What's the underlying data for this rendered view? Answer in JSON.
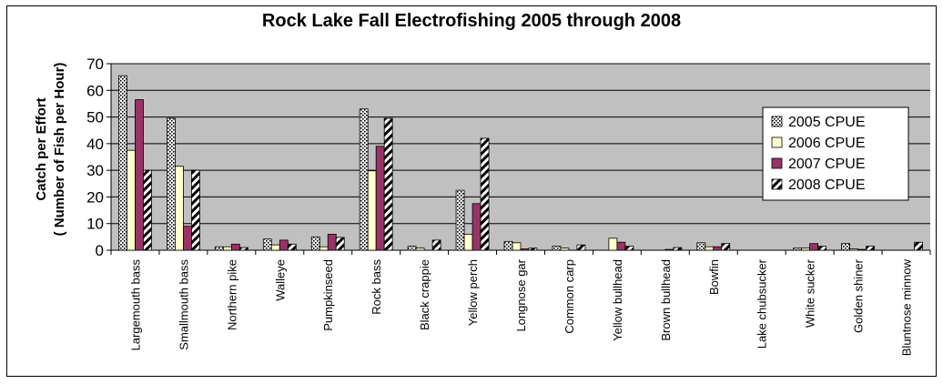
{
  "chart_data": {
    "type": "bar",
    "title": "Rock Lake Fall Electrofishing 2005 through 2008",
    "ylabel_line1": "Catch per Effort",
    "ylabel_line2": "( Number of Fish per Hour)",
    "xlabel": "",
    "ylim": [
      0,
      70
    ],
    "yticks": [
      0,
      10,
      20,
      30,
      40,
      50,
      60,
      70
    ],
    "grid": true,
    "legend_position": "right",
    "plot_background": "#c0c0c0",
    "categories": [
      "Largemouth bass",
      "Smallmouth bass",
      "Northern pike",
      "Walleye",
      "Pumpkinseed",
      "Rock bass",
      "Black crappie",
      "Yellow perch",
      "Longnose gar",
      "Common carp",
      "Yellow bullhead",
      "Brown bullhead",
      "Bowfin",
      "Lake chubsucker",
      "White sucker",
      "Golden shiner",
      "Bluntnose minnow"
    ],
    "series": [
      {
        "name": "2005 CPUE",
        "color": "#ffffff",
        "pattern": "dots",
        "values": [
          65.5,
          49.5,
          1.3,
          4.2,
          5.0,
          53.0,
          1.5,
          22.5,
          3.3,
          1.5,
          0,
          0,
          2.8,
          0,
          0.8,
          2.5,
          0
        ]
      },
      {
        "name": "2006 CPUE",
        "color": "#ffffcc",
        "pattern": "solid",
        "values": [
          37.5,
          31.5,
          1.3,
          2.0,
          1.3,
          29.8,
          0.8,
          6.0,
          2.8,
          0.8,
          4.5,
          0,
          1.3,
          0,
          0.8,
          0.5,
          0
        ]
      },
      {
        "name": "2007 CPUE",
        "color": "#993366",
        "pattern": "solid",
        "values": [
          56.5,
          9.0,
          2.3,
          3.8,
          6.0,
          39.0,
          0,
          17.5,
          0.5,
          0,
          3.0,
          0.3,
          1.3,
          0,
          2.5,
          0.3,
          0
        ]
      },
      {
        "name": "2008 CPUE",
        "color": "#ffffff",
        "pattern": "diagonal",
        "values": [
          30.0,
          30.0,
          1.0,
          2.3,
          4.8,
          49.5,
          3.8,
          42.0,
          0.8,
          2.0,
          1.5,
          1.0,
          2.5,
          0,
          1.5,
          1.5,
          3.0
        ]
      }
    ]
  }
}
